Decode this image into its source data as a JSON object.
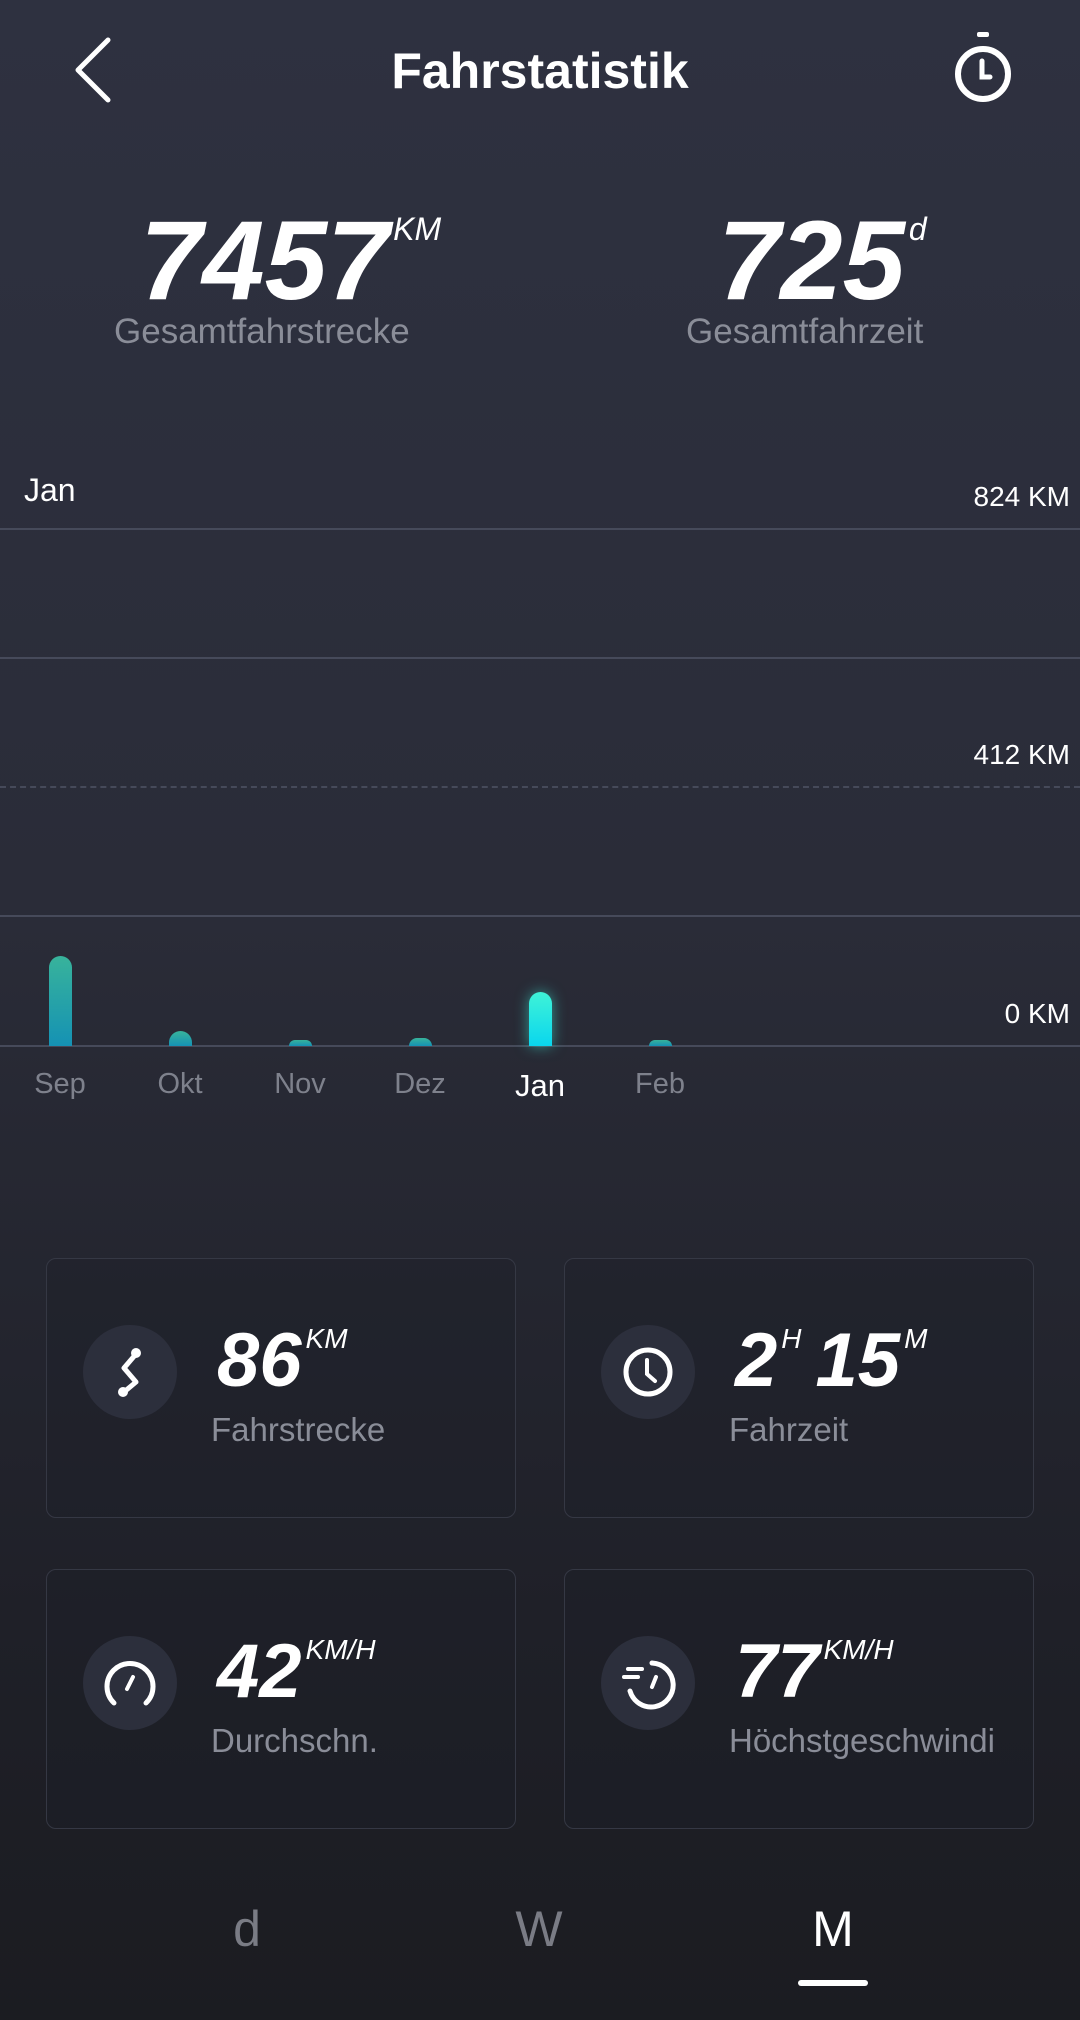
{
  "header": {
    "title": "Fahrstatistik",
    "back_icon": "chevron-left-icon",
    "right_icon": "stopwatch-icon"
  },
  "totals": {
    "distance": {
      "value": "7457",
      "unit": "KM",
      "label": "Gesamtfahrstrecke"
    },
    "time": {
      "value": "725",
      "unit": "d",
      "label": "Gesamtfahrzeit"
    }
  },
  "chart_data": {
    "type": "bar",
    "selected": "Jan",
    "categories": [
      "Sep",
      "Okt",
      "Nov",
      "Dez",
      "Jan",
      "Feb"
    ],
    "values": [
      143,
      24,
      8,
      13,
      86,
      8
    ],
    "y_ticks": [
      "824 KM",
      "412 KM",
      "0 KM"
    ],
    "ylim": [
      0,
      824
    ],
    "colors": {
      "bar": "#1fa3ad",
      "selected": "#2ee8e0"
    }
  },
  "cards": [
    {
      "icon": "route-icon",
      "value": "86",
      "unit": "KM",
      "label": "Fahrstrecke"
    },
    {
      "icon": "clock-icon",
      "value": "2",
      "unit": "H",
      "value2": "15",
      "unit2": "M",
      "label": "Fahrzeit"
    },
    {
      "icon": "speedometer-icon",
      "value": "42",
      "unit": "KM/H",
      "label": "Durchschn."
    },
    {
      "icon": "max-speed-icon",
      "value": "77",
      "unit": "KM/H",
      "label": "Höchstgeschwindi"
    }
  ],
  "tabs": [
    {
      "label": "d"
    },
    {
      "label": "W"
    },
    {
      "label": "M",
      "active": true
    }
  ]
}
